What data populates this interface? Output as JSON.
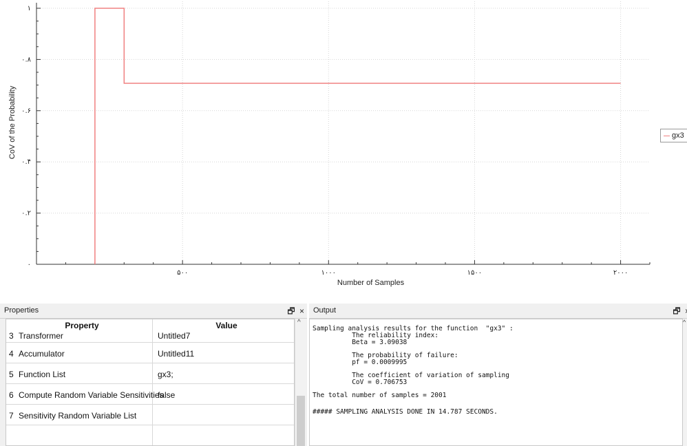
{
  "chart_data": {
    "type": "line",
    "ylabel": "CoV of the Probability",
    "xlabel": "Number of Samples",
    "x_ticks": [
      {
        "value": 500,
        "label": "۵۰۰"
      },
      {
        "value": 1000,
        "label": "۱۰۰۰"
      },
      {
        "value": 1500,
        "label": "۱۵۰۰"
      },
      {
        "value": 2000,
        "label": "۲۰۰۰"
      }
    ],
    "y_ticks": [
      {
        "value": 0,
        "label": "۰"
      },
      {
        "value": 0.2,
        "label": "۰.۲"
      },
      {
        "value": 0.4,
        "label": "۰.۴"
      },
      {
        "value": 0.6,
        "label": "۰.۶"
      },
      {
        "value": 0.8,
        "label": "۰.۸"
      },
      {
        "value": 1,
        "label": "۱"
      }
    ],
    "xlim": [
      0,
      2100
    ],
    "ylim": [
      0,
      1.0
    ],
    "grid": true,
    "legend_position": "right",
    "series": [
      {
        "name": "gx3",
        "color": "#f08080",
        "points": [
          [
            200,
            0
          ],
          [
            200,
            1.0
          ],
          [
            300,
            1.0
          ],
          [
            300,
            0.707
          ],
          [
            2000,
            0.707
          ]
        ]
      }
    ]
  },
  "properties": {
    "title": "Properties",
    "col_property": "Property",
    "col_value": "Value",
    "rows": [
      {
        "num": "3",
        "key": "Transformer",
        "value": "Untitled7"
      },
      {
        "num": "4",
        "key": "Accumulator",
        "value": "Untitled11"
      },
      {
        "num": "5",
        "key": "Function List",
        "value": "gx3;"
      },
      {
        "num": "6",
        "key": "Compute Random Variable Sensitivities",
        "value": "false"
      },
      {
        "num": "7",
        "key": "Sensitivity Random Variable List",
        "value": ""
      }
    ]
  },
  "output": {
    "title": "Output",
    "lines": [
      "Sampling analysis results for the function  \"gx3\" :",
      "          The reliability index:",
      "          Beta = 3.09038",
      "",
      "          The probability of failure:",
      "          pf = 0.0009995",
      "",
      "          The coefficient of variation of sampling",
      "          CoV = 0.706753",
      "",
      "The total number of samples = 2001",
      "",
      "##### SAMPLING ANALYSIS DONE IN 14.787 SECONDS."
    ]
  },
  "icons": {
    "float": "🗗",
    "close": "×",
    "scroll_up": "^"
  }
}
